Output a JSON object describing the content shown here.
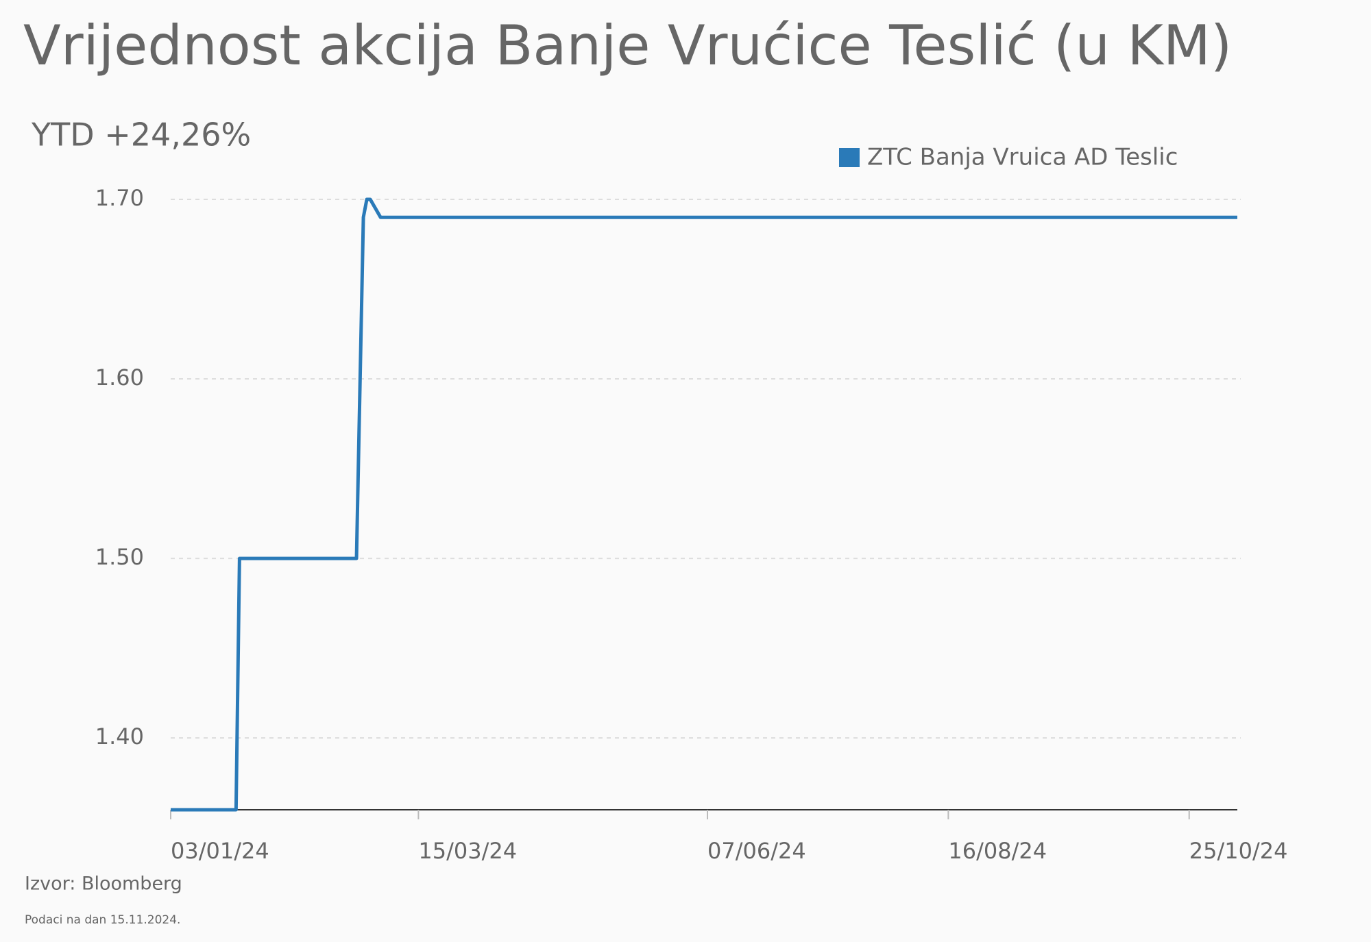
{
  "chart_data": {
    "type": "line",
    "title": "Vrijednost akcija Banje Vrućice Teslić (u KM)",
    "subtitle": "YTD +24,26%",
    "x": [
      "03/01/24",
      "22/01/24",
      "23/01/24",
      "26/02/24",
      "28/02/24",
      "29/02/24",
      "01/03/24",
      "04/03/24",
      "08/11/24"
    ],
    "series": [
      {
        "name": "ZTC Banja Vruica AD Teslic",
        "color": "#2a7ab8",
        "values": [
          1.36,
          1.36,
          1.5,
          1.5,
          1.69,
          1.7,
          1.7,
          1.69,
          1.69
        ]
      }
    ],
    "xlim": [
      "03/01/24",
      "08/11/24"
    ],
    "xticks": [
      "03/01/24",
      "15/03/24",
      "07/06/24",
      "16/08/24",
      "25/10/24"
    ],
    "ylim": [
      1.36,
      1.7
    ],
    "yticks": [
      {
        "value": 1.4,
        "label": "1.40"
      },
      {
        "value": 1.5,
        "label": "1.50"
      },
      {
        "value": 1.6,
        "label": "1.60"
      },
      {
        "value": 1.7,
        "label": "1.70"
      }
    ],
    "grid": true,
    "legend": "top-right",
    "source": "Izvor: Bloomberg",
    "note": "Podaci na dan 15.11.2024."
  }
}
